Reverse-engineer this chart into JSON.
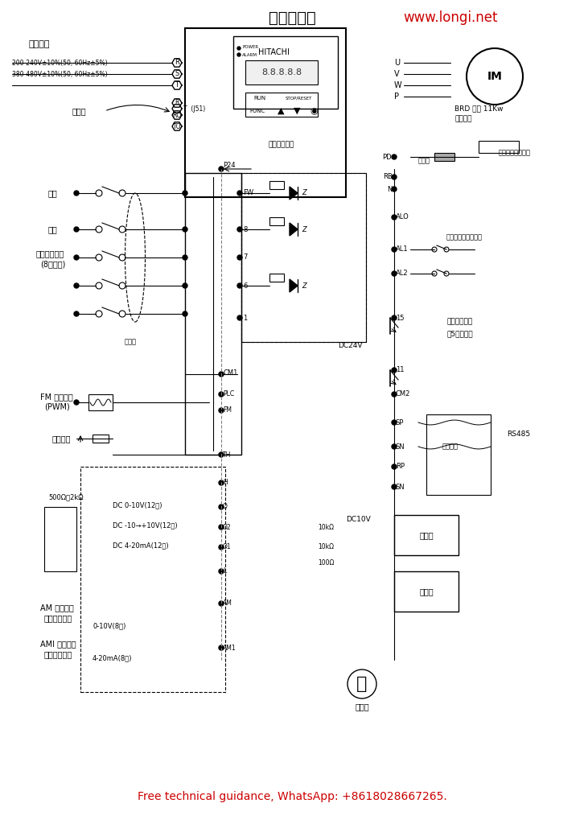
{
  "title": "端子接线图",
  "website": "www.longi.net",
  "footer": "Free technical guidance, WhatsApp: +8618028667265.",
  "bg_color": "#ffffff",
  "title_color": "#000000",
  "website_color": "#cc0000",
  "footer_color": "#cc0000",
  "line_color": "#000000"
}
